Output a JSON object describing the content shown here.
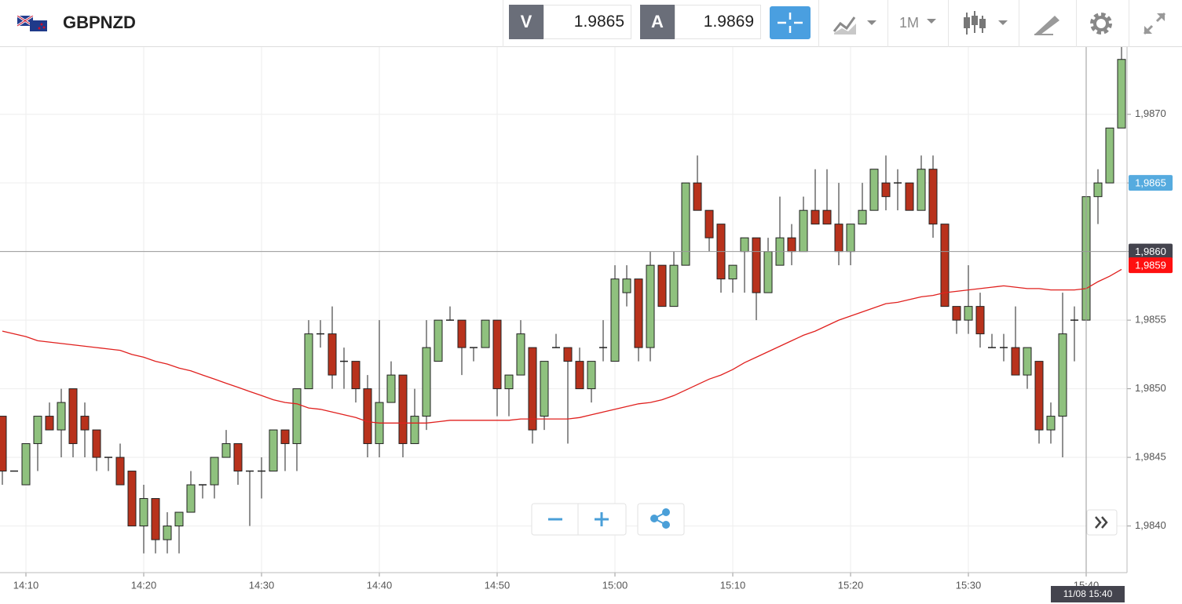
{
  "toolbar": {
    "symbol": "GBPNZD",
    "bid_label": "V",
    "bid": "1.9865",
    "ask_label": "A",
    "ask": "1.9869",
    "timeframe": "1M"
  },
  "chart_data": {
    "type": "candlestick",
    "x": [
      "14:08",
      "14:09",
      "14:10",
      "14:11",
      "14:12",
      "14:13",
      "14:14",
      "14:15",
      "14:16",
      "14:17",
      "14:18",
      "14:19",
      "14:20",
      "14:21",
      "14:22",
      "14:23",
      "14:24",
      "14:25",
      "14:26",
      "14:27",
      "14:28",
      "14:29",
      "14:30",
      "14:31",
      "14:32",
      "14:33",
      "14:34",
      "14:35",
      "14:36",
      "14:37",
      "14:38",
      "14:39",
      "14:40",
      "14:41",
      "14:42",
      "14:43",
      "14:44",
      "14:45",
      "14:46",
      "14:47",
      "14:48",
      "14:49",
      "14:50",
      "14:51",
      "14:52",
      "14:53",
      "14:54",
      "14:55",
      "14:56",
      "14:57",
      "14:58",
      "14:59",
      "15:00",
      "15:01",
      "15:02",
      "15:03",
      "15:04",
      "15:05",
      "15:06",
      "15:07",
      "15:08",
      "15:09",
      "15:10",
      "15:11",
      "15:12",
      "15:13",
      "15:14",
      "15:15",
      "15:16",
      "15:17",
      "15:18",
      "15:19",
      "15:20",
      "15:21",
      "15:22",
      "15:23",
      "15:24",
      "15:25",
      "15:26",
      "15:27",
      "15:28",
      "15:29",
      "15:30",
      "15:31",
      "15:32",
      "15:33",
      "15:34",
      "15:35",
      "15:36",
      "15:37",
      "15:38",
      "15:39",
      "15:40",
      "15:41",
      "15:42",
      "15:43"
    ],
    "open": [
      1.9848,
      1.9844,
      1.9843,
      1.9846,
      1.9848,
      1.9847,
      1.985,
      1.9848,
      1.9847,
      1.9845,
      1.9845,
      1.9844,
      1.984,
      1.9842,
      1.9839,
      1.984,
      1.9841,
      1.9843,
      1.9843,
      1.9845,
      1.9846,
      1.9844,
      1.9844,
      1.9844,
      1.9847,
      1.9846,
      1.985,
      1.9854,
      1.9854,
      1.9852,
      1.9852,
      1.985,
      1.9846,
      1.9849,
      1.9851,
      1.9846,
      1.9848,
      1.9852,
      1.9855,
      1.9855,
      1.9853,
      1.9853,
      1.9855,
      1.985,
      1.9851,
      1.9853,
      1.9848,
      1.9853,
      1.9853,
      1.9852,
      1.985,
      1.9853,
      1.9852,
      1.9857,
      1.9858,
      1.9853,
      1.9859,
      1.9856,
      1.9859,
      1.9865,
      1.9863,
      1.9862,
      1.9858,
      1.986,
      1.9861,
      1.9857,
      1.9859,
      1.9861,
      1.986,
      1.9863,
      1.9863,
      1.9862,
      1.986,
      1.9862,
      1.9863,
      1.9865,
      1.9865,
      1.9865,
      1.9863,
      1.9866,
      1.9862,
      1.9856,
      1.9855,
      1.9856,
      1.9853,
      1.9853,
      1.9853,
      1.9851,
      1.9852,
      1.9847,
      1.9848,
      1.9855,
      1.9855,
      1.9864,
      1.9865,
      1.9869
    ],
    "high": [
      1.9848,
      1.9844,
      1.9846,
      1.9848,
      1.9849,
      1.985,
      1.985,
      1.9849,
      1.9847,
      1.9845,
      1.9846,
      1.9844,
      1.9843,
      1.9842,
      1.9841,
      1.9841,
      1.9844,
      1.9843,
      1.9845,
      1.9847,
      1.9846,
      1.9844,
      1.9845,
      1.9847,
      1.9847,
      1.985,
      1.9855,
      1.9855,
      1.9856,
      1.9853,
      1.9852,
      1.9851,
      1.9855,
      1.9852,
      1.9851,
      1.985,
      1.9855,
      1.9855,
      1.9856,
      1.9855,
      1.9853,
      1.9855,
      1.9855,
      1.9851,
      1.9855,
      1.9853,
      1.9852,
      1.9854,
      1.9853,
      1.9853,
      1.9852,
      1.9855,
      1.9859,
      1.9859,
      1.9858,
      1.986,
      1.9859,
      1.986,
      1.9865,
      1.9867,
      1.9863,
      1.9862,
      1.9859,
      1.9861,
      1.9861,
      1.9861,
      1.9864,
      1.9862,
      1.9864,
      1.9866,
      1.9866,
      1.9865,
      1.9862,
      1.9865,
      1.9866,
      1.9867,
      1.9866,
      1.9865,
      1.9867,
      1.9867,
      1.9862,
      1.9856,
      1.9859,
      1.9857,
      1.9854,
      1.9854,
      1.9856,
      1.9853,
      1.9852,
      1.9849,
      1.9857,
      1.9856,
      1.9864,
      1.9866,
      1.9869,
      1.9875
    ],
    "low": [
      1.9843,
      1.9844,
      1.9843,
      1.9844,
      1.9847,
      1.9845,
      1.9845,
      1.9845,
      1.9844,
      1.9844,
      1.9843,
      1.984,
      1.9838,
      1.9838,
      1.9838,
      1.9838,
      1.9841,
      1.9842,
      1.9842,
      1.9845,
      1.9843,
      1.984,
      1.9842,
      1.9844,
      1.9844,
      1.9844,
      1.985,
      1.9853,
      1.985,
      1.985,
      1.9849,
      1.9845,
      1.9845,
      1.9849,
      1.9845,
      1.9846,
      1.9847,
      1.9852,
      1.9855,
      1.9851,
      1.9852,
      1.9853,
      1.9848,
      1.9848,
      1.9851,
      1.9846,
      1.9847,
      1.9853,
      1.9846,
      1.985,
      1.9849,
      1.9852,
      1.9852,
      1.9856,
      1.9852,
      1.9852,
      1.9856,
      1.9856,
      1.9859,
      1.9863,
      1.986,
      1.9857,
      1.9857,
      1.9857,
      1.9855,
      1.9857,
      1.9859,
      1.9859,
      1.986,
      1.9862,
      1.9862,
      1.9859,
      1.9859,
      1.9862,
      1.9863,
      1.9863,
      1.9863,
      1.9863,
      1.9863,
      1.9861,
      1.9856,
      1.9854,
      1.9854,
      1.9853,
      1.9853,
      1.9852,
      1.9851,
      1.985,
      1.9846,
      1.9846,
      1.9845,
      1.9852,
      1.9855,
      1.9862,
      1.9865,
      1.9869
    ],
    "close": [
      1.9844,
      1.9844,
      1.9846,
      1.9848,
      1.9847,
      1.9849,
      1.9846,
      1.9847,
      1.9845,
      1.9845,
      1.9843,
      1.984,
      1.9842,
      1.9839,
      1.984,
      1.9841,
      1.9843,
      1.9843,
      1.9845,
      1.9846,
      1.9844,
      1.9844,
      1.9844,
      1.9847,
      1.9846,
      1.985,
      1.9854,
      1.9854,
      1.9851,
      1.9852,
      1.985,
      1.9846,
      1.9849,
      1.9851,
      1.9846,
      1.9848,
      1.9853,
      1.9855,
      1.9855,
      1.9853,
      1.9853,
      1.9855,
      1.985,
      1.9851,
      1.9854,
      1.9847,
      1.9852,
      1.9853,
      1.9852,
      1.985,
      1.9852,
      1.9853,
      1.9858,
      1.9858,
      1.9853,
      1.9859,
      1.9856,
      1.9859,
      1.9865,
      1.9863,
      1.9861,
      1.9858,
      1.9859,
      1.9861,
      1.9857,
      1.986,
      1.9861,
      1.986,
      1.9863,
      1.9862,
      1.9862,
      1.986,
      1.9862,
      1.9863,
      1.9866,
      1.9864,
      1.9865,
      1.9863,
      1.9866,
      1.9862,
      1.9856,
      1.9855,
      1.9856,
      1.9854,
      1.9853,
      1.9853,
      1.9851,
      1.9853,
      1.9847,
      1.9848,
      1.9854,
      1.9855,
      1.9864,
      1.9865,
      1.9869,
      1.9874
    ],
    "up_color": "#8fc17e",
    "down_color": "#b8321c",
    "ma": {
      "color": "#e0201e",
      "values": [
        1.98542,
        1.9854,
        1.98538,
        1.98535,
        1.98534,
        1.98533,
        1.98532,
        1.98531,
        1.9853,
        1.98529,
        1.98528,
        1.98525,
        1.98523,
        1.9852,
        1.98518,
        1.98515,
        1.98513,
        1.9851,
        1.98507,
        1.98504,
        1.98501,
        1.98498,
        1.98495,
        1.98492,
        1.9849,
        1.98489,
        1.98486,
        1.98485,
        1.98483,
        1.98481,
        1.98479,
        1.98476,
        1.98475,
        1.98475,
        1.98475,
        1.98475,
        1.98475,
        1.98476,
        1.98477,
        1.98477,
        1.98477,
        1.98477,
        1.98477,
        1.98477,
        1.98478,
        1.98478,
        1.98478,
        1.98478,
        1.98478,
        1.98479,
        1.98481,
        1.98483,
        1.98485,
        1.98487,
        1.98489,
        1.9849,
        1.98492,
        1.98495,
        1.98499,
        1.98503,
        1.98507,
        1.9851,
        1.98514,
        1.98519,
        1.98523,
        1.98527,
        1.98531,
        1.98535,
        1.98539,
        1.98542,
        1.98546,
        1.9855,
        1.98553,
        1.98556,
        1.98559,
        1.98562,
        1.98563,
        1.98565,
        1.98567,
        1.98568,
        1.9857,
        1.98571,
        1.98572,
        1.98573,
        1.98574,
        1.98575,
        1.98574,
        1.98573,
        1.98573,
        1.98572,
        1.98572,
        1.98572,
        1.98573,
        1.98578,
        1.98582,
        1.98587
      ]
    },
    "ylim": [
      1.98366,
      1.98749
    ],
    "yticks": [
      {
        "value": 1.984,
        "label": "1,9840"
      },
      {
        "value": 1.9845,
        "label": "1,9845"
      },
      {
        "value": 1.985,
        "label": "1,9850"
      },
      {
        "value": 1.9855,
        "label": "1,9855"
      },
      {
        "value": 1.986,
        "label": "1,9860"
      },
      {
        "value": 1.9865,
        "label": "1,9865"
      },
      {
        "value": 1.987,
        "label": "1,9870"
      }
    ],
    "xticks": [
      "14:10",
      "14:20",
      "14:30",
      "14:40",
      "14:50",
      "15:00",
      "15:10",
      "15:20",
      "15:30",
      "15:40"
    ],
    "grid": true,
    "ask_marker": {
      "value": 1.9865,
      "label": "1,9865",
      "color": "#56abdf"
    },
    "ma_marker": {
      "value": 1.9859,
      "label": "1,9859",
      "color": "#ff1010"
    },
    "crosshair": {
      "x": "15:40",
      "time_label": "11/08 15:40",
      "price": {
        "value": 1.986,
        "label": "1,9860"
      },
      "color": "#44444e"
    }
  }
}
